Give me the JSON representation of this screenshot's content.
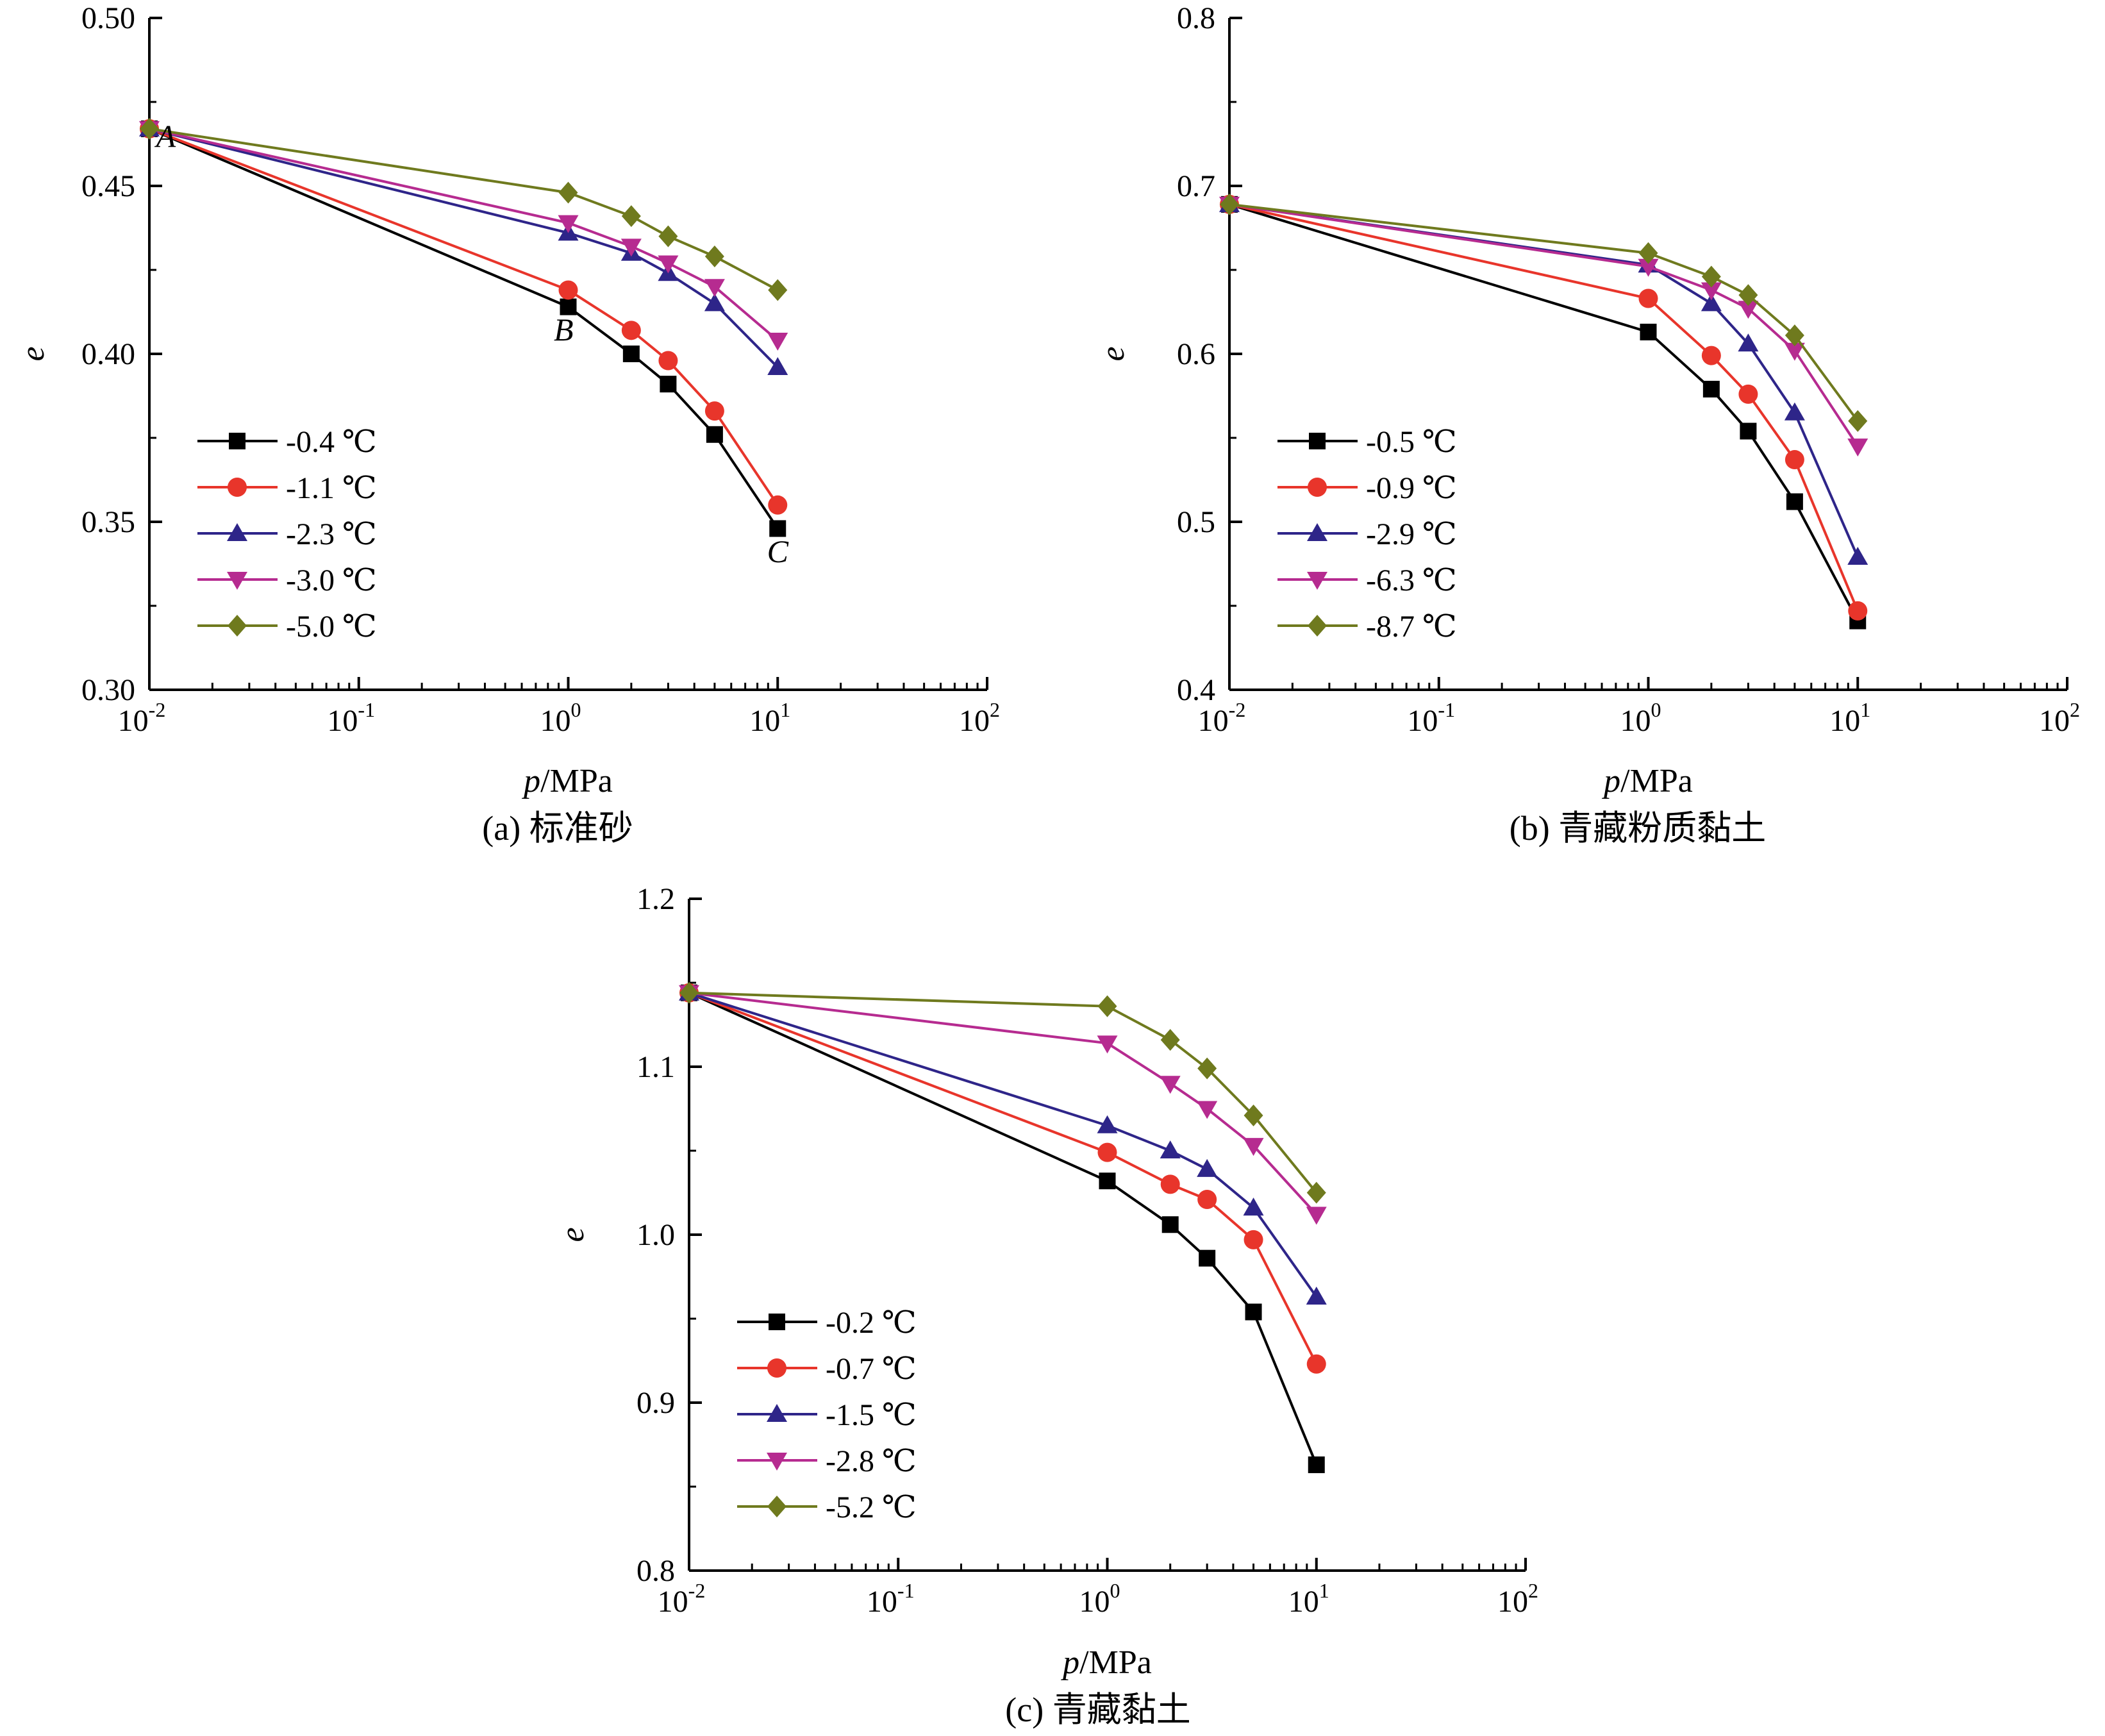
{
  "chart_data": [
    {
      "type": "line",
      "caption": "(a) 标准砂",
      "xlabel_italic": "p",
      "xlabel_rest": "/MPa",
      "ylabel": "e",
      "xscale": "log",
      "xlim": [
        0.01,
        100
      ],
      "ylim": [
        0.3,
        0.5
      ],
      "yticks": [
        "0.30",
        "0.35",
        "0.40",
        "0.45",
        "0.50"
      ],
      "xticks": [
        {
          "base": "10",
          "exp": "-2"
        },
        {
          "base": "10",
          "exp": "-1"
        },
        {
          "base": "10",
          "exp": "0"
        },
        {
          "base": "10",
          "exp": "1"
        },
        {
          "base": "10",
          "exp": "2"
        }
      ],
      "grid": false,
      "legend_position": "bottom-left",
      "x": [
        0.01,
        1,
        2,
        3,
        5,
        10
      ],
      "series": [
        {
          "name": "-0.4 ℃",
          "marker": "square",
          "color": "#000000",
          "values": [
            0.467,
            0.414,
            0.4,
            0.391,
            0.376,
            0.348
          ]
        },
        {
          "name": "-1.1 ℃",
          "marker": "circle",
          "color": "#e8352b",
          "values": [
            0.467,
            0.419,
            0.407,
            0.398,
            0.383,
            0.355
          ]
        },
        {
          "name": "-2.3 ℃",
          "marker": "triangle-up",
          "color": "#2e2589",
          "values": [
            0.467,
            0.436,
            0.43,
            0.424,
            0.415,
            0.396
          ]
        },
        {
          "name": "-3.0 ℃",
          "marker": "triangle-down",
          "color": "#b62b90",
          "values": [
            0.467,
            0.439,
            0.432,
            0.427,
            0.42,
            0.404
          ]
        },
        {
          "name": "-5.0 ℃",
          "marker": "diamond",
          "color": "#6f7a1e",
          "values": [
            0.467,
            0.448,
            0.441,
            0.435,
            0.429,
            0.419
          ]
        }
      ],
      "annotations": [
        {
          "text": "A",
          "x": 0.012,
          "y": 0.4615
        },
        {
          "text": "B",
          "x": 0.95,
          "y": 0.404
        },
        {
          "text": "C",
          "x": 10,
          "y": 0.338
        }
      ]
    },
    {
      "type": "line",
      "caption": "(b) 青藏粉质黏土",
      "xlabel_italic": "p",
      "xlabel_rest": "/MPa",
      "ylabel": "e",
      "xscale": "log",
      "xlim": [
        0.01,
        100
      ],
      "ylim": [
        0.4,
        0.8
      ],
      "yticks": [
        "0.4",
        "0.5",
        "0.6",
        "0.7",
        "0.8"
      ],
      "xticks": [
        {
          "base": "10",
          "exp": "-2"
        },
        {
          "base": "10",
          "exp": "-1"
        },
        {
          "base": "10",
          "exp": "0"
        },
        {
          "base": "10",
          "exp": "1"
        },
        {
          "base": "10",
          "exp": "2"
        }
      ],
      "grid": false,
      "legend_position": "bottom-left",
      "x": [
        0.01,
        1,
        2,
        3,
        5,
        10
      ],
      "series": [
        {
          "name": "-0.5 ℃",
          "marker": "square",
          "color": "#000000",
          "values": [
            0.689,
            0.613,
            0.579,
            0.554,
            0.512,
            0.441
          ]
        },
        {
          "name": "-0.9 ℃",
          "marker": "circle",
          "color": "#e8352b",
          "values": [
            0.689,
            0.633,
            0.599,
            0.576,
            0.537,
            0.447
          ]
        },
        {
          "name": "-2.9 ℃",
          "marker": "triangle-up",
          "color": "#2e2589",
          "values": [
            0.689,
            0.653,
            0.63,
            0.606,
            0.565,
            0.479
          ]
        },
        {
          "name": "-6.3 ℃",
          "marker": "triangle-down",
          "color": "#b62b90",
          "values": [
            0.689,
            0.652,
            0.638,
            0.627,
            0.602,
            0.545
          ]
        },
        {
          "name": "-8.7 ℃",
          "marker": "diamond",
          "color": "#6f7a1e",
          "values": [
            0.689,
            0.66,
            0.646,
            0.635,
            0.611,
            0.56
          ]
        }
      ]
    },
    {
      "type": "line",
      "caption": "(c) 青藏黏土",
      "xlabel_italic": "p",
      "xlabel_rest": "/MPa",
      "ylabel": "e",
      "xscale": "log",
      "xlim": [
        0.01,
        100
      ],
      "ylim": [
        0.8,
        1.2
      ],
      "yticks": [
        "0.8",
        "0.9",
        "1.0",
        "1.1",
        "1.2"
      ],
      "xticks": [
        {
          "base": "10",
          "exp": "-2"
        },
        {
          "base": "10",
          "exp": "-1"
        },
        {
          "base": "10",
          "exp": "0"
        },
        {
          "base": "10",
          "exp": "1"
        },
        {
          "base": "10",
          "exp": "2"
        }
      ],
      "grid": false,
      "legend_position": "bottom-left",
      "x": [
        0.01,
        1,
        2,
        3,
        5,
        10
      ],
      "series": [
        {
          "name": "-0.2 ℃",
          "marker": "square",
          "color": "#000000",
          "values": [
            1.144,
            1.032,
            1.006,
            0.986,
            0.954,
            0.863
          ]
        },
        {
          "name": "-0.7 ℃",
          "marker": "circle",
          "color": "#e8352b",
          "values": [
            1.144,
            1.049,
            1.03,
            1.021,
            0.997,
            0.923
          ]
        },
        {
          "name": "-1.5 ℃",
          "marker": "triangle-up",
          "color": "#2e2589",
          "values": [
            1.144,
            1.065,
            1.05,
            1.039,
            1.016,
            0.963
          ]
        },
        {
          "name": "-2.8 ℃",
          "marker": "triangle-down",
          "color": "#b62b90",
          "values": [
            1.144,
            1.114,
            1.09,
            1.075,
            1.053,
            1.012
          ]
        },
        {
          "name": "-5.2 ℃",
          "marker": "diamond",
          "color": "#6f7a1e",
          "values": [
            1.144,
            1.136,
            1.116,
            1.099,
            1.071,
            1.025
          ]
        }
      ]
    }
  ]
}
